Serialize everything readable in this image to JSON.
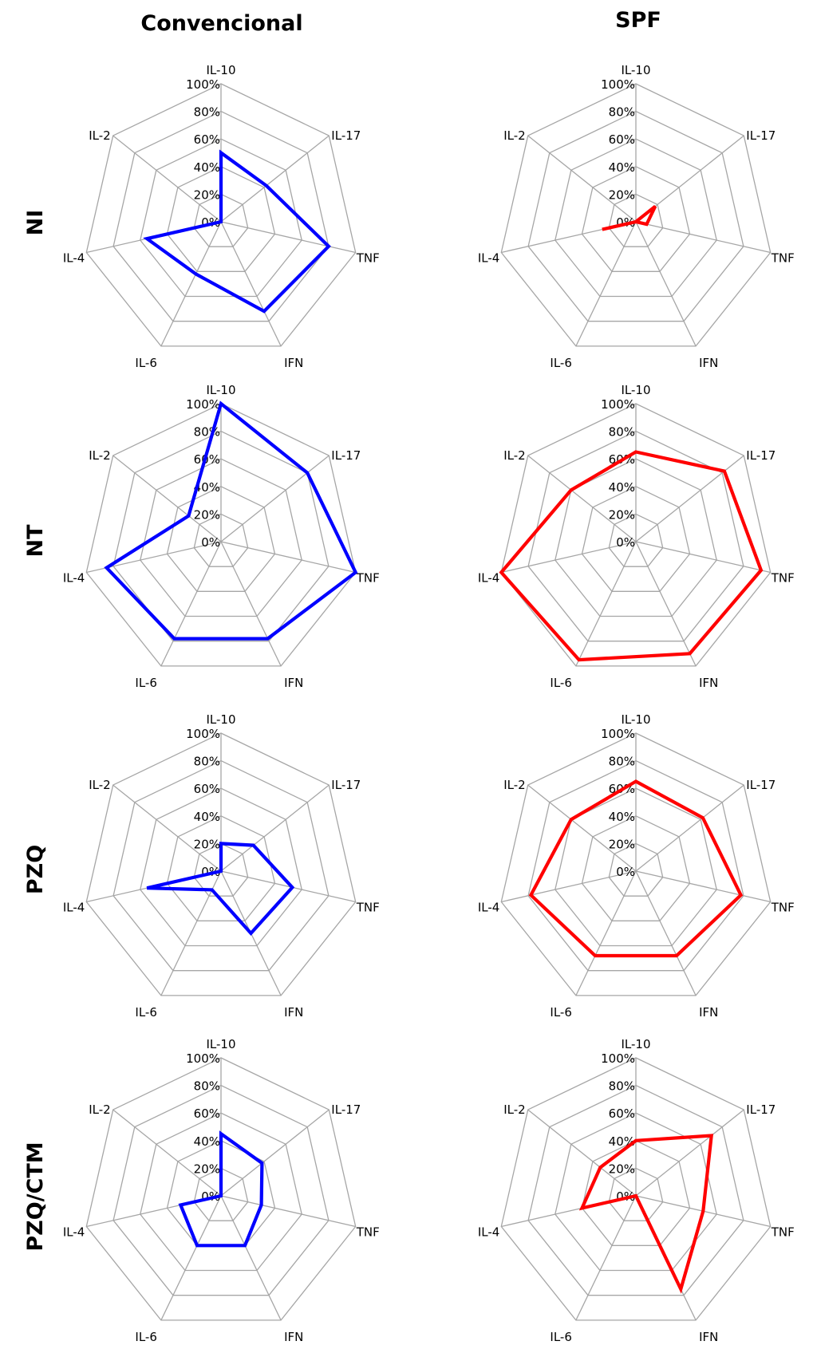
{
  "columns": [
    "Convencional",
    "SPF"
  ],
  "rows": [
    "NI",
    "NT",
    "PZQ",
    "PZQ/CTM"
  ],
  "chart_data": {
    "type": "radar",
    "axes": [
      "IL-10",
      "IL-17",
      "TNF",
      "IFN",
      "IL-6",
      "IL-4",
      "IL-2"
    ],
    "tick_labels": [
      "0%",
      "20%",
      "40%",
      "60%",
      "80%",
      "100%"
    ],
    "rmax": 100,
    "colors": {
      "Convencional": "#0000ff",
      "SPF": "#ff0000"
    },
    "panels": [
      {
        "row": "NI",
        "column": "Convencional",
        "values": [
          50,
          42,
          80,
          72,
          42,
          55,
          0
        ]
      },
      {
        "row": "NI",
        "column": "SPF",
        "values": [
          0,
          18,
          8,
          0,
          0,
          25,
          0
        ]
      },
      {
        "row": "NT",
        "column": "Convencional",
        "values": [
          100,
          80,
          100,
          78,
          78,
          85,
          30
        ]
      },
      {
        "row": "NT",
        "column": "SPF",
        "values": [
          65,
          82,
          93,
          90,
          95,
          100,
          60
        ]
      },
      {
        "row": "PZQ",
        "column": "Convencional",
        "values": [
          20,
          30,
          53,
          50,
          15,
          55,
          0
        ]
      },
      {
        "row": "PZQ",
        "column": "SPF",
        "values": [
          65,
          62,
          78,
          68,
          68,
          78,
          60
        ]
      },
      {
        "row": "PZQ/CTM",
        "column": "Convencional",
        "values": [
          45,
          38,
          30,
          40,
          40,
          30,
          0
        ]
      },
      {
        "row": "PZQ/CTM",
        "column": "SPF",
        "values": [
          40,
          70,
          50,
          75,
          0,
          40,
          33
        ]
      }
    ]
  }
}
